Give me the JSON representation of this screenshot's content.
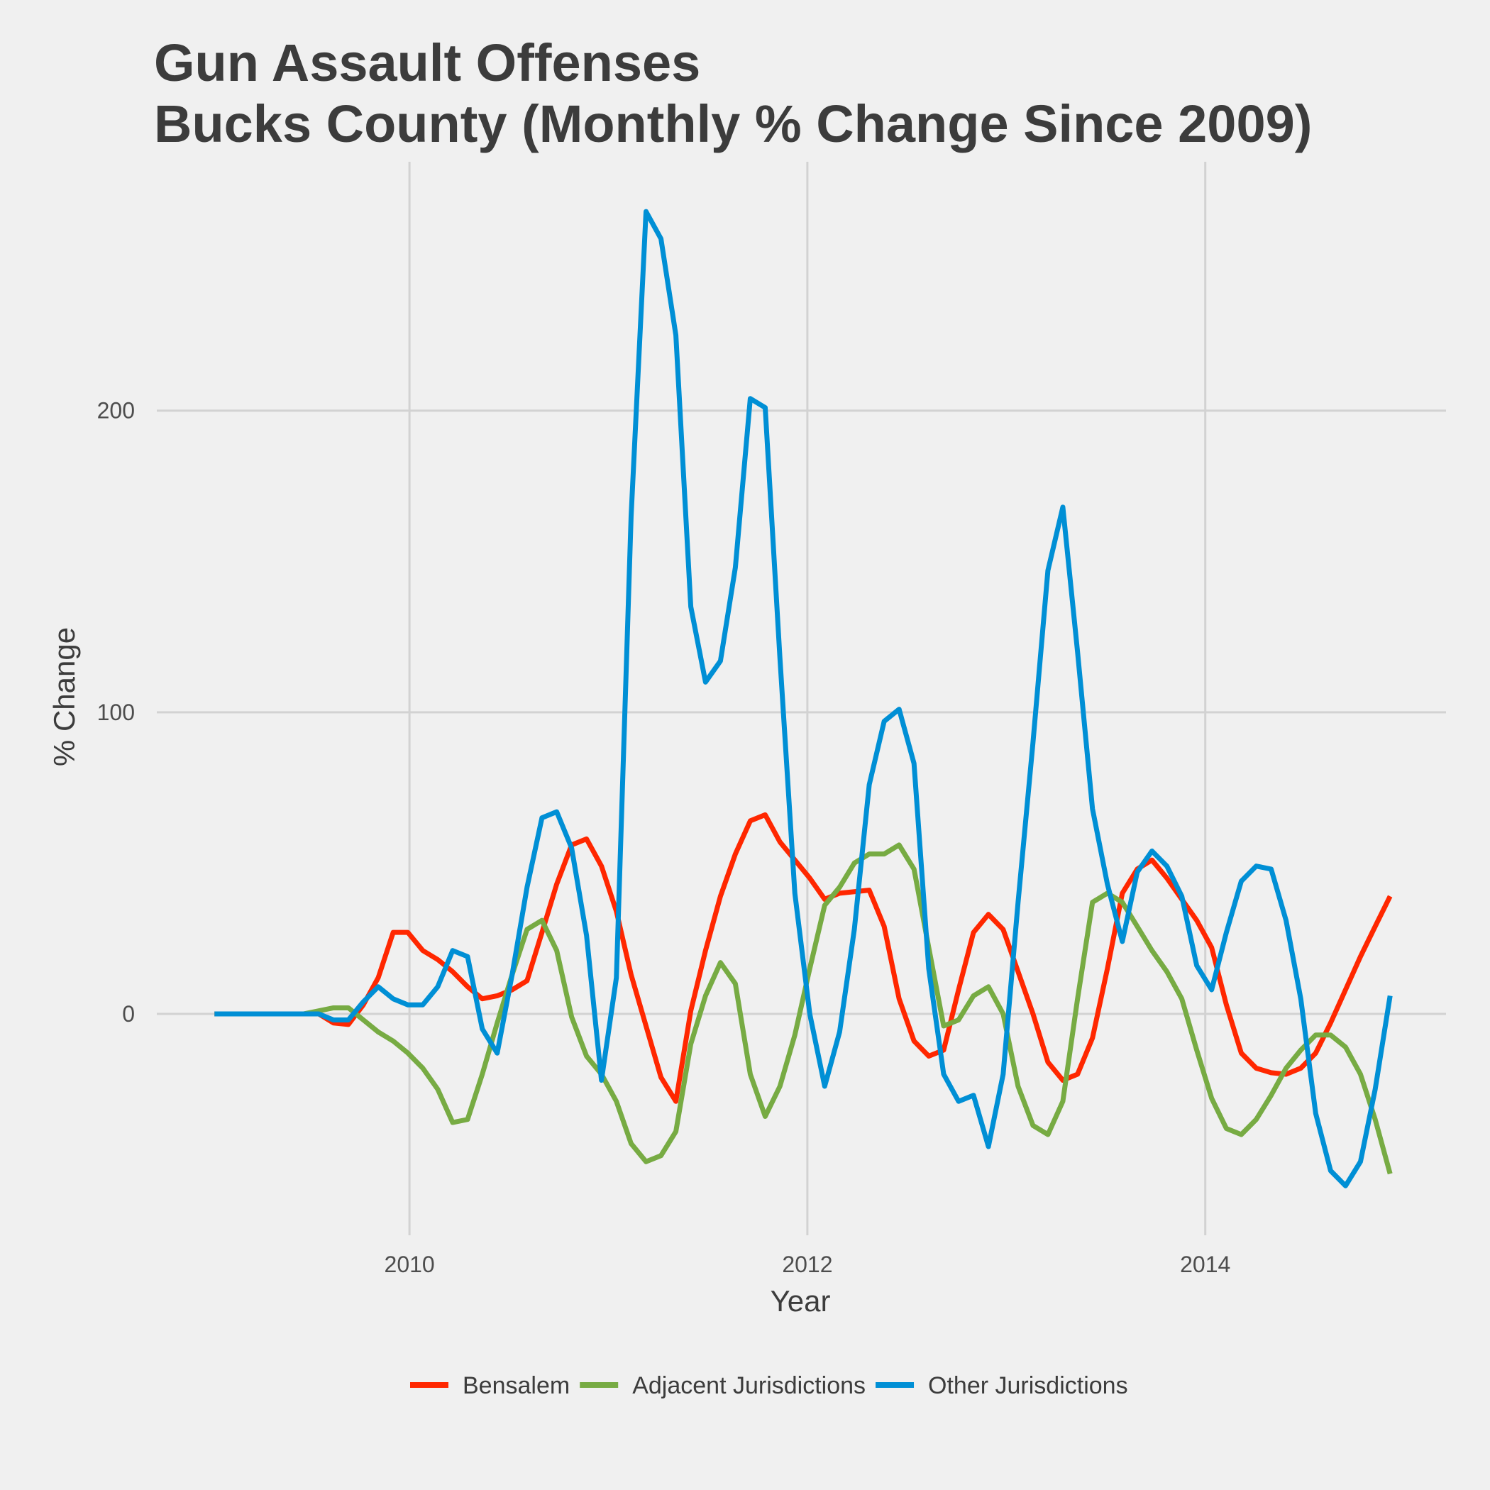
{
  "chart_data": {
    "type": "line",
    "title": [
      "Gun Assault Offenses",
      "Bucks County (Monthly % Change Since 2009)"
    ],
    "x_label": "Year",
    "y_label": "% Change",
    "x": [
      2009.02,
      2009.095,
      2009.17,
      2009.244,
      2009.319,
      2009.394,
      2009.469,
      2009.544,
      2009.618,
      2009.693,
      2009.768,
      2009.843,
      2009.918,
      2009.992,
      2010.067,
      2010.142,
      2010.217,
      2010.292,
      2010.366,
      2010.441,
      2010.516,
      2010.591,
      2010.666,
      2010.74,
      2010.815,
      2010.89,
      2010.965,
      2011.04,
      2011.114,
      2011.189,
      2011.264,
      2011.339,
      2011.414,
      2011.488,
      2011.563,
      2011.638,
      2011.713,
      2011.788,
      2011.862,
      2011.937,
      2012.012,
      2012.087,
      2012.162,
      2012.236,
      2012.311,
      2012.386,
      2012.461,
      2012.536,
      2012.61,
      2012.685,
      2012.76,
      2012.835,
      2012.91,
      2012.984,
      2013.059,
      2013.134,
      2013.209,
      2013.284,
      2013.358,
      2013.433,
      2013.508,
      2013.583,
      2013.658,
      2013.732,
      2013.807,
      2013.882,
      2013.957,
      2014.032,
      2014.106,
      2014.181,
      2014.256,
      2014.331,
      2014.406,
      2014.48,
      2014.555,
      2014.63,
      2014.705,
      2014.78,
      2014.854,
      2014.929
    ],
    "series": [
      {
        "name": "Bensalem",
        "color": "#ff2700",
        "values": [
          0,
          0,
          0,
          0,
          0,
          0,
          0,
          0,
          -3,
          -3.5,
          3,
          12,
          27,
          27,
          21,
          18,
          14,
          9,
          5,
          6,
          8,
          11,
          27,
          43,
          56,
          58,
          49,
          34,
          13,
          -4,
          -21,
          -29,
          1,
          21,
          39,
          53,
          64,
          66,
          57,
          51,
          45,
          38,
          40,
          40.5,
          41,
          29,
          5,
          -9,
          -14,
          -12,
          8,
          27,
          33,
          28,
          14,
          0,
          -16,
          -22,
          -20,
          -8,
          15,
          40,
          48,
          51,
          45,
          38,
          31,
          22,
          3,
          -13,
          -18,
          -19.5,
          -20,
          -18,
          -13,
          -3,
          8,
          19,
          29,
          39
        ]
      },
      {
        "name": "Adjacent Jurisdictions",
        "color": "#77ab43",
        "values": [
          0,
          0,
          0,
          0,
          0,
          0,
          0,
          1,
          2,
          2,
          -2,
          -6,
          -9,
          -13,
          -18,
          -25,
          -36,
          -35,
          -20,
          -3,
          13,
          28,
          31,
          21,
          -1,
          -14,
          -20,
          -29,
          -43,
          -49,
          -47,
          -39,
          -10,
          6,
          17,
          10,
          -20,
          -34,
          -24,
          -7,
          15,
          36,
          42,
          50,
          53,
          53,
          56,
          48,
          22,
          -4,
          -2,
          6,
          9,
          0,
          -24,
          -37,
          -40,
          -29,
          5,
          37,
          40,
          37,
          29,
          21,
          14,
          5,
          -12,
          -28,
          -38,
          -40,
          -35,
          -27,
          -18,
          -12,
          -7,
          -7,
          -11,
          -20,
          -35,
          -53
        ]
      },
      {
        "name": "Other Jurisdictions",
        "color": "#008fd5",
        "values": [
          0,
          0,
          0,
          0,
          0,
          0,
          0,
          0,
          -2,
          -2,
          4,
          9,
          5,
          3,
          3,
          9,
          21,
          19,
          -5,
          -13,
          13,
          42,
          65,
          67,
          55,
          26,
          -22,
          12,
          165,
          266,
          257,
          225,
          135,
          110,
          117,
          148,
          204,
          201,
          118,
          40,
          0,
          -24,
          -6,
          28,
          76,
          97,
          101,
          83,
          15,
          -20,
          -29,
          -27,
          -44,
          -20,
          37,
          90,
          147,
          168,
          120,
          68,
          43,
          24,
          47,
          54,
          49,
          39,
          16,
          8,
          27,
          44,
          49,
          48,
          31,
          5,
          -33,
          -52,
          -57,
          -49,
          -25,
          6
        ]
      }
    ],
    "xlim": [
      2008.73,
      2015.21
    ],
    "ylim": [
      -73.4,
      282.5
    ],
    "xticks": [
      2010,
      2012,
      2014
    ],
    "yticks": [
      0,
      100,
      200
    ],
    "grid": true,
    "legend": "bottom"
  }
}
